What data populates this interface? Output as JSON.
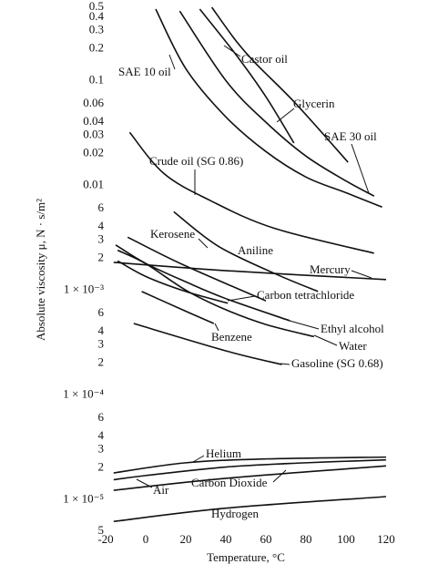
{
  "chart_data": {
    "type": "line",
    "ylog": true,
    "grid": false,
    "color": "#111111",
    "x_label": "Temperature, °C",
    "y_label": "Absolute viscosity μ, N · s/m²",
    "xlim": [
      -20,
      120
    ],
    "xticks": [
      -20,
      0,
      20,
      40,
      60,
      80,
      100,
      120
    ],
    "ylim": [
      5e-06,
      0.5
    ],
    "yticks": [
      0.5,
      0.4,
      0.3,
      0.2,
      0.1,
      0.06,
      0.04,
      0.03,
      0.02,
      0.01,
      {
        "value": 0.006,
        "label": "6"
      },
      {
        "value": 0.004,
        "label": "4"
      },
      {
        "value": 0.003,
        "label": "3"
      },
      {
        "value": 0.002,
        "label": "2"
      },
      {
        "value": 0.001,
        "label": "1 × 10⁻³"
      },
      {
        "value": 0.0006,
        "label": "6"
      },
      {
        "value": 0.0004,
        "label": "4"
      },
      {
        "value": 0.0003,
        "label": "3"
      },
      {
        "value": 0.0002,
        "label": "2"
      },
      {
        "value": 0.0001,
        "label": "1 × 10⁻⁴"
      },
      {
        "value": 6e-05,
        "label": "6"
      },
      {
        "value": 4e-05,
        "label": "4"
      },
      {
        "value": 3e-05,
        "label": "3"
      },
      {
        "value": 2e-05,
        "label": "2"
      },
      {
        "value": 1e-05,
        "label": "1 × 10⁻⁵"
      },
      {
        "value": 5e-06,
        "label": "5"
      }
    ],
    "series": [
      {
        "name": "SAE 10 oil",
        "x": [
          5,
          20,
          40,
          60,
          80,
          100,
          118
        ],
        "values": [
          0.48,
          0.13,
          0.045,
          0.021,
          0.012,
          0.0085,
          0.0062
        ]
      },
      {
        "name": "Castor oil",
        "x": [
          33,
          45,
          55,
          75,
          101
        ],
        "values": [
          0.5,
          0.24,
          0.145,
          0.06,
          0.0166
        ]
      },
      {
        "name": "Glycerin",
        "x": [
          27,
          45,
          60,
          74
        ],
        "values": [
          0.48,
          0.177,
          0.07,
          0.0253
        ]
      },
      {
        "name": "SAE 30 oil",
        "x": [
          17,
          40,
          60,
          80,
          100,
          114
        ],
        "values": [
          0.46,
          0.1,
          0.04,
          0.019,
          0.011,
          0.0079
        ]
      },
      {
        "name": "Crude oil (SG 0.86)",
        "x": [
          -8,
          9,
          32,
          64,
          114
        ],
        "values": [
          0.032,
          0.013,
          0.0072,
          0.0039,
          0.00225
        ]
      },
      {
        "name": "Kerosene",
        "x": [
          -9,
          18,
          60
        ],
        "values": [
          0.0032,
          0.00177,
          0.00079
        ]
      },
      {
        "name": "Aniline",
        "x": [
          14,
          36,
          64,
          86
        ],
        "values": [
          0.0056,
          0.00264,
          0.00145,
          0.00097
        ]
      },
      {
        "name": "Mercury",
        "x": [
          -16,
          41,
          120
        ],
        "values": [
          0.00184,
          0.00153,
          0.00126
        ]
      },
      {
        "name": "Carbon tetrachloride",
        "x": [
          -14,
          0,
          20,
          41
        ],
        "values": [
          0.0019,
          0.00135,
          0.00097,
          0.00075
        ]
      },
      {
        "name": "Ethyl alcohol",
        "x": [
          -15,
          0,
          20,
          40,
          72
        ],
        "values": [
          0.0027,
          0.0018,
          0.0012,
          0.00083,
          0.00051
        ]
      },
      {
        "name": "Water",
        "x": [
          -14,
          0,
          20,
          40,
          60,
          84
        ],
        "values": [
          0.0024,
          0.00179,
          0.001,
          0.00065,
          0.00047,
          0.00036
        ]
      },
      {
        "name": "Benzene",
        "x": [
          -2,
          16,
          34
        ],
        "values": [
          0.00097,
          0.00068,
          0.00048
        ]
      },
      {
        "name": "Gasoline (SG 0.68)",
        "x": [
          -6,
          41,
          68
        ],
        "values": [
          0.00048,
          0.00026,
          0.000195
        ]
      },
      {
        "name": "Helium",
        "x": [
          -16,
          20,
          60,
          120
        ],
        "values": [
          1.8e-05,
          2.25e-05,
          2.45e-05,
          2.55e-05
        ]
      },
      {
        "name": "Air",
        "x": [
          -16,
          0,
          40,
          80,
          120
        ],
        "values": [
          1.55e-05,
          1.7e-05,
          2.05e-05,
          2.25e-05,
          2.4e-05
        ]
      },
      {
        "name": "Carbon Dioxide",
        "x": [
          -16,
          40,
          120
        ],
        "values": [
          1.23e-05,
          1.6e-05,
          2.1e-05
        ]
      },
      {
        "name": "Hydrogen",
        "x": [
          -16,
          40,
          120
        ],
        "values": [
          6.2e-06,
          8.3e-06,
          1.07e-05
        ]
      }
    ]
  }
}
